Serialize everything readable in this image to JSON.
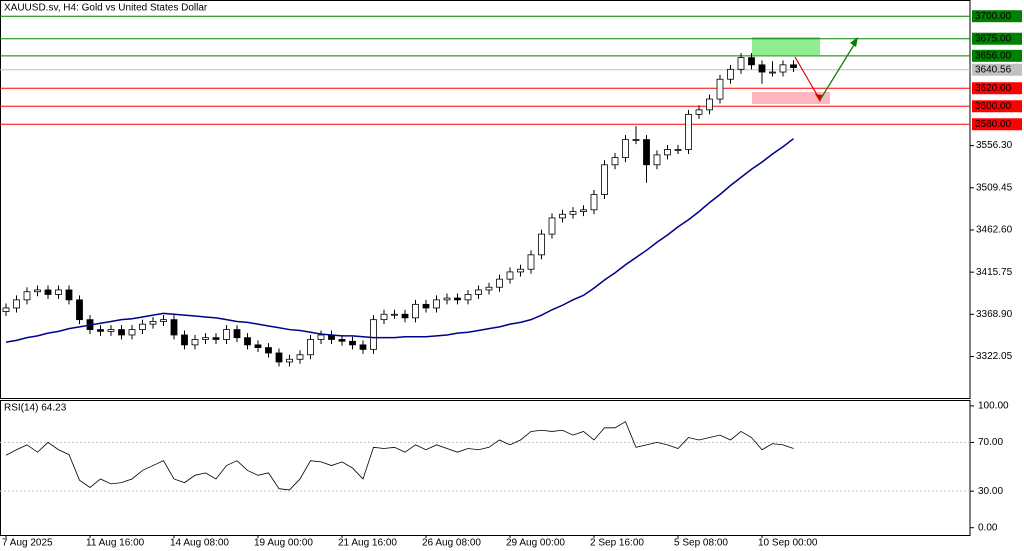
{
  "chart_data": {
    "type": "candlestick",
    "title": "XAUUSD.sv, H4:  Gold vs United States Dollar",
    "categories": [
      "7 Aug 2025",
      null,
      null,
      null,
      null,
      null,
      null,
      null,
      "11 Aug 16:00",
      null,
      null,
      null,
      null,
      null,
      null,
      null,
      "14 Aug 08:00",
      null,
      null,
      null,
      null,
      null,
      null,
      null,
      "19 Aug 00:00",
      null,
      null,
      null,
      null,
      null,
      null,
      null,
      "21 Aug 16:00",
      null,
      null,
      null,
      null,
      null,
      null,
      null,
      "26 Aug 08:00",
      null,
      null,
      null,
      null,
      null,
      null,
      null,
      "29 Aug 00:00",
      null,
      null,
      null,
      null,
      null,
      null,
      null,
      "2 Sep 16:00",
      null,
      null,
      null,
      null,
      null,
      null,
      null,
      "5 Sep 08:00",
      null,
      null,
      null,
      null,
      null,
      null,
      null,
      "10 Sep 00:00",
      null,
      null,
      null
    ],
    "open": [
      3372,
      3376,
      3385,
      3394,
      3396,
      3391,
      3396,
      3385,
      3363,
      3352,
      3350,
      3352,
      3346,
      3352,
      3358,
      3361,
      3363,
      3346,
      3335,
      3341,
      3343,
      3341,
      3352,
      3343,
      3335,
      3332,
      3326,
      3316,
      3319,
      3324,
      3341,
      3346,
      3341,
      3339,
      3335,
      3330,
      3363,
      3369,
      3369,
      3365,
      3380,
      3376,
      3385,
      3387,
      3385,
      3391,
      3396,
      3399,
      3408,
      3416,
      3419,
      3435,
      3458,
      3476,
      3480,
      3483,
      3485,
      3502,
      3535,
      3543,
      3563,
      3563,
      3535,
      3546,
      3552,
      3552,
      3591,
      3596,
      3608,
      3630,
      3641,
      3654,
      3646,
      3638,
      3638,
      3646
    ],
    "high": [
      3381,
      3390,
      3399,
      3401,
      3401,
      3401,
      3401,
      3390,
      3368,
      3357,
      3357,
      3357,
      3357,
      3363,
      3366,
      3368,
      3368,
      3351,
      3346,
      3348,
      3348,
      3357,
      3357,
      3348,
      3340,
      3337,
      3331,
      3324,
      3329,
      3346,
      3351,
      3351,
      3346,
      3344,
      3340,
      3368,
      3374,
      3374,
      3374,
      3385,
      3385,
      3390,
      3392,
      3392,
      3396,
      3401,
      3404,
      3413,
      3421,
      3424,
      3440,
      3463,
      3481,
      3485,
      3488,
      3490,
      3507,
      3540,
      3548,
      3568,
      3578,
      3568,
      3551,
      3557,
      3557,
      3596,
      3601,
      3613,
      3635,
      3646,
      3659,
      3659,
      3651,
      3650,
      3651,
      3651
    ],
    "low": [
      3367,
      3371,
      3380,
      3389,
      3386,
      3386,
      3380,
      3358,
      3347,
      3345,
      3345,
      3341,
      3341,
      3347,
      3353,
      3356,
      3341,
      3330,
      3330,
      3336,
      3336,
      3336,
      3338,
      3330,
      3327,
      3321,
      3311,
      3311,
      3314,
      3319,
      3336,
      3336,
      3334,
      3330,
      3325,
      3325,
      3358,
      3364,
      3360,
      3360,
      3371,
      3371,
      3380,
      3380,
      3380,
      3386,
      3391,
      3394,
      3403,
      3411,
      3414,
      3430,
      3453,
      3471,
      3475,
      3478,
      3480,
      3497,
      3530,
      3538,
      3558,
      3515,
      3530,
      3541,
      3547,
      3547,
      3586,
      3591,
      3603,
      3625,
      3636,
      3641,
      3625,
      3633,
      3633,
      3638
    ],
    "close": [
      3376,
      3385,
      3394,
      3396,
      3391,
      3396,
      3385,
      3363,
      3352,
      3350,
      3352,
      3346,
      3352,
      3358,
      3361,
      3363,
      3346,
      3335,
      3341,
      3343,
      3341,
      3352,
      3343,
      3335,
      3332,
      3326,
      3316,
      3319,
      3324,
      3341,
      3346,
      3341,
      3339,
      3335,
      3330,
      3363,
      3369,
      3369,
      3365,
      3380,
      3376,
      3385,
      3387,
      3385,
      3391,
      3396,
      3399,
      3408,
      3416,
      3419,
      3435,
      3458,
      3476,
      3480,
      3483,
      3485,
      3502,
      3535,
      3543,
      3563,
      3563,
      3535,
      3546,
      3552,
      3552,
      3591,
      3596,
      3608,
      3630,
      3641,
      3654,
      3646,
      3638,
      3638,
      3646,
      3643
    ],
    "ma": {
      "color": "#00008b",
      "values": [
        3338,
        3340,
        3343,
        3345,
        3348,
        3350,
        3353,
        3355,
        3357,
        3359,
        3361,
        3363,
        3364,
        3366,
        3368,
        3370,
        3369,
        3368,
        3367,
        3366,
        3365,
        3363,
        3361,
        3360,
        3358,
        3356,
        3354,
        3352,
        3351,
        3349,
        3347,
        3346,
        3345,
        3345,
        3344,
        3343,
        3343,
        3343,
        3344,
        3344,
        3344,
        3345,
        3346,
        3348,
        3349,
        3351,
        3353,
        3355,
        3358,
        3360,
        3363,
        3368,
        3374,
        3379,
        3385,
        3390,
        3398,
        3407,
        3415,
        3424,
        3432,
        3440,
        3449,
        3457,
        3466,
        3474,
        3483,
        3493,
        3502,
        3512,
        3521,
        3530,
        3538,
        3547,
        3555,
        3564
      ]
    },
    "ylim": [
      3276,
      3718
    ],
    "yticks": [
      3322.05,
      {
        "value": 3368.9,
        "label": "3368.90"
      },
      3415.75,
      {
        "value": 3462.6,
        "label": "3462.60"
      },
      3509.45,
      {
        "value": 3556.3,
        "label": "3556.30"
      }
    ],
    "levels": [
      {
        "value": 3700,
        "label": "3700.00",
        "color": "#008000"
      },
      {
        "value": 3675,
        "label": "3675.00",
        "color": "#008000"
      },
      {
        "value": 3656,
        "label": "3656.00",
        "color": "#008000"
      },
      {
        "value": 3640.56,
        "label": "3640.56",
        "color": "#c0c0c0"
      },
      {
        "value": 3620,
        "label": "3620.00",
        "color": "#ff0000"
      },
      {
        "value": 3600,
        "label": "3600.00",
        "color": "#ff0000"
      },
      {
        "value": 3580,
        "label": "3580.00",
        "color": "#ff0000"
      }
    ],
    "rsi": {
      "label": "RSI(14) 64.23",
      "color": "#000000",
      "values": [
        59.5,
        64,
        68,
        62,
        70,
        64,
        60,
        39,
        33,
        40,
        36,
        37,
        40,
        47,
        51,
        55,
        40,
        37,
        43,
        45,
        40,
        51,
        55,
        47,
        43,
        45,
        32,
        31,
        40,
        55,
        54,
        51,
        54,
        49,
        40,
        66,
        65,
        66,
        62,
        68,
        64,
        68,
        65,
        62,
        65,
        64,
        66,
        72,
        68,
        72,
        79,
        80,
        79,
        80,
        76,
        79,
        72,
        82,
        82,
        87,
        66,
        68,
        70,
        68,
        65,
        74,
        72,
        74,
        76,
        72,
        79,
        74,
        64,
        69,
        68,
        65
      ],
      "ylim": [
        -6,
        104
      ],
      "yticks": [
        {
          "value": 100,
          "label": "100.00"
        },
        {
          "value": 70,
          "label": "70.00"
        },
        {
          "value": 30,
          "label": "30.00"
        },
        {
          "value": 0,
          "label": "0.00"
        }
      ]
    }
  }
}
